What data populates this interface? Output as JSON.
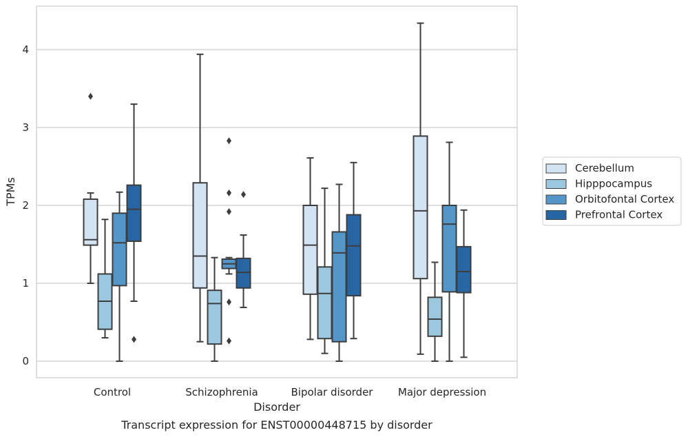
{
  "chart_data": {
    "type": "box",
    "title": "Transcript expression for ENST00000448715 by disorder",
    "xlabel": "Disorder",
    "ylabel": "TPMs",
    "ylim": [
      -0.2,
      4.55
    ],
    "yticks": [
      0,
      1,
      2,
      3,
      4
    ],
    "grid": "horizontal",
    "legend_position": "right",
    "categories": [
      "Control",
      "Schizophrenia",
      "Bipolar disorder",
      "Major depression"
    ],
    "series": [
      {
        "name": "Cerebellum",
        "color": "#d4e3f2",
        "boxes": [
          {
            "whisker_low": 1.0,
            "q1": 1.49,
            "median": 1.56,
            "q3": 2.08,
            "whisker_high": 2.16,
            "outliers": [
              3.4
            ]
          },
          {
            "whisker_low": 0.25,
            "q1": 0.94,
            "median": 1.35,
            "q3": 2.29,
            "whisker_high": 3.94,
            "outliers": []
          },
          {
            "whisker_low": 0.28,
            "q1": 0.86,
            "median": 1.49,
            "q3": 2.0,
            "whisker_high": 2.61,
            "outliers": []
          },
          {
            "whisker_low": 0.09,
            "q1": 1.06,
            "median": 1.93,
            "q3": 2.89,
            "whisker_high": 4.34,
            "outliers": []
          }
        ]
      },
      {
        "name": "Hipppocampus",
        "color": "#9bc7df",
        "boxes": [
          {
            "whisker_low": 0.3,
            "q1": 0.41,
            "median": 0.77,
            "q3": 1.12,
            "whisker_high": 1.82,
            "outliers": []
          },
          {
            "whisker_low": 0.0,
            "q1": 0.22,
            "median": 0.74,
            "q3": 0.91,
            "whisker_high": 1.33,
            "outliers": []
          },
          {
            "whisker_low": 0.1,
            "q1": 0.29,
            "median": 0.87,
            "q3": 1.21,
            "whisker_high": 2.22,
            "outliers": []
          },
          {
            "whisker_low": 0.0,
            "q1": 0.32,
            "median": 0.54,
            "q3": 0.82,
            "whisker_high": 1.27,
            "outliers": []
          }
        ]
      },
      {
        "name": "Orbitofontal Cortex",
        "color": "#5496c8",
        "boxes": [
          {
            "whisker_low": 0.0,
            "q1": 0.97,
            "median": 1.52,
            "q3": 1.9,
            "whisker_high": 2.17,
            "outliers": []
          },
          {
            "whisker_low": 1.12,
            "q1": 1.19,
            "median": 1.25,
            "q3": 1.31,
            "whisker_high": 1.33,
            "outliers": [
              2.83,
              2.16,
              1.92,
              0.76,
              0.26
            ]
          },
          {
            "whisker_low": 0.0,
            "q1": 0.25,
            "median": 1.39,
            "q3": 1.66,
            "whisker_high": 2.27,
            "outliers": []
          },
          {
            "whisker_low": 0.0,
            "q1": 0.89,
            "median": 1.76,
            "q3": 2.0,
            "whisker_high": 2.81,
            "outliers": []
          }
        ]
      },
      {
        "name": "Prefrontal Cortex",
        "color": "#2865a4",
        "boxes": [
          {
            "whisker_low": 0.77,
            "q1": 1.54,
            "median": 1.95,
            "q3": 2.26,
            "whisker_high": 3.3,
            "outliers": [
              0.28
            ]
          },
          {
            "whisker_low": 0.69,
            "q1": 0.94,
            "median": 1.14,
            "q3": 1.32,
            "whisker_high": 1.62,
            "outliers": [
              2.14
            ]
          },
          {
            "whisker_low": 0.29,
            "q1": 0.84,
            "median": 1.48,
            "q3": 1.88,
            "whisker_high": 2.55,
            "outliers": []
          },
          {
            "whisker_low": 0.05,
            "q1": 0.88,
            "median": 1.15,
            "q3": 1.47,
            "whisker_high": 1.94,
            "outliers": []
          }
        ]
      }
    ]
  }
}
